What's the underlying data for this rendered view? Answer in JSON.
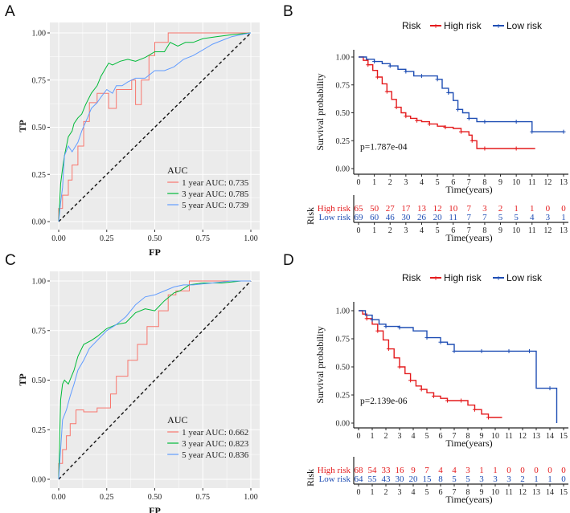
{
  "panels": [
    {
      "label": "A",
      "chart_data": {
        "type": "line",
        "title": "",
        "xlabel": "FP",
        "ylabel": "TP",
        "xlim": [
          0,
          1
        ],
        "ylim": [
          0,
          1
        ],
        "xticks": [
          "0.00",
          "0.25",
          "0.50",
          "0.75",
          "1.00"
        ],
        "yticks": [
          "0.00",
          "0.25",
          "0.50",
          "0.75",
          "1.00"
        ],
        "legend_title": "AUC",
        "series": [
          {
            "name": "1 year AUC: 0.735",
            "color": "#F8766D",
            "x": [
              0,
              0,
              0.02,
              0.02,
              0.05,
              0.05,
              0.07,
              0.07,
              0.1,
              0.1,
              0.13,
              0.13,
              0.16,
              0.16,
              0.2,
              0.2,
              0.26,
              0.26,
              0.3,
              0.3,
              0.38,
              0.38,
              0.4,
              0.4,
              0.43,
              0.43,
              0.47,
              0.47,
              0.5,
              0.5,
              0.57,
              0.57,
              0.66,
              0.66,
              1
            ],
            "y": [
              0,
              0.07,
              0.07,
              0.14,
              0.14,
              0.22,
              0.22,
              0.3,
              0.3,
              0.4,
              0.4,
              0.53,
              0.53,
              0.63,
              0.63,
              0.68,
              0.68,
              0.6,
              0.6,
              0.7,
              0.7,
              0.75,
              0.75,
              0.62,
              0.62,
              0.75,
              0.75,
              0.88,
              0.88,
              0.95,
              0.95,
              1,
              1,
              1,
              1
            ]
          },
          {
            "name": "3 year AUC: 0.785",
            "color": "#00BA38",
            "x": [
              0,
              0.01,
              0.02,
              0.03,
              0.05,
              0.07,
              0.08,
              0.1,
              0.12,
              0.14,
              0.17,
              0.2,
              0.22,
              0.26,
              0.28,
              0.32,
              0.36,
              0.4,
              0.45,
              0.5,
              0.55,
              0.58,
              0.62,
              0.66,
              0.7,
              0.75,
              0.82,
              0.9,
              1
            ],
            "y": [
              0,
              0.2,
              0.28,
              0.35,
              0.45,
              0.48,
              0.52,
              0.55,
              0.57,
              0.62,
              0.68,
              0.72,
              0.77,
              0.84,
              0.83,
              0.85,
              0.86,
              0.85,
              0.87,
              0.9,
              0.9,
              0.95,
              0.93,
              0.95,
              0.95,
              0.97,
              0.98,
              0.99,
              1
            ]
          },
          {
            "name": "5 year AUC: 0.739",
            "color": "#619CFF",
            "x": [
              0,
              0.01,
              0.02,
              0.03,
              0.05,
              0.07,
              0.1,
              0.12,
              0.15,
              0.17,
              0.2,
              0.22,
              0.25,
              0.28,
              0.3,
              0.33,
              0.36,
              0.4,
              0.45,
              0.5,
              0.55,
              0.6,
              0.65,
              0.7,
              0.75,
              0.8,
              0.85,
              0.9,
              0.95,
              1
            ],
            "y": [
              0,
              0.1,
              0.18,
              0.35,
              0.4,
              0.37,
              0.42,
              0.48,
              0.55,
              0.6,
              0.63,
              0.66,
              0.7,
              0.68,
              0.72,
              0.72,
              0.74,
              0.76,
              0.76,
              0.8,
              0.8,
              0.82,
              0.86,
              0.88,
              0.91,
              0.94,
              0.96,
              0.98,
              0.99,
              1
            ]
          }
        ]
      }
    },
    {
      "label": "B",
      "chart_data": {
        "type": "line",
        "title": "",
        "xlabel": "Time(years)",
        "ylabel": "Survival probability",
        "xlim": [
          0,
          13
        ],
        "ylim": [
          0,
          1
        ],
        "xticks": [
          "0",
          "1",
          "2",
          "3",
          "4",
          "5",
          "6",
          "7",
          "8",
          "9",
          "10",
          "11",
          "12",
          "13"
        ],
        "yticks": [
          "0.00",
          "0.25",
          "0.50",
          "0.75",
          "1.00"
        ],
        "legend_title": "Risk",
        "pvalue": "p=1.787e-04",
        "series": [
          {
            "name": "High risk",
            "color": "#E41A1C",
            "x": [
              0,
              0.3,
              0.6,
              0.9,
              1.2,
              1.5,
              1.8,
              2.1,
              2.4,
              2.7,
              3,
              3.3,
              3.7,
              4,
              4.5,
              5,
              5.5,
              6,
              6.5,
              7,
              7.2,
              7.5,
              8,
              9,
              10,
              11.2
            ],
            "y": [
              1,
              0.97,
              0.93,
              0.88,
              0.82,
              0.76,
              0.69,
              0.62,
              0.55,
              0.5,
              0.47,
              0.45,
              0.43,
              0.42,
              0.4,
              0.38,
              0.37,
              0.36,
              0.33,
              0.3,
              0.25,
              0.18,
              0.18,
              0.18,
              0.18,
              0.18
            ]
          },
          {
            "name": "Low risk",
            "color": "#1F4EB4",
            "x": [
              0,
              0.5,
              1,
              1.5,
              2,
              2.5,
              3,
              3.5,
              4,
              4.5,
              5,
              5.3,
              5.7,
              6,
              6.3,
              6.6,
              7,
              7.5,
              8,
              9,
              10,
              10.5,
              11,
              12,
              13
            ],
            "y": [
              1,
              0.98,
              0.96,
              0.94,
              0.92,
              0.89,
              0.87,
              0.83,
              0.83,
              0.83,
              0.8,
              0.72,
              0.68,
              0.61,
              0.53,
              0.5,
              0.45,
              0.42,
              0.42,
              0.42,
              0.42,
              0.42,
              0.33,
              0.33,
              0.33
            ]
          }
        ]
      },
      "risk_table": {
        "title": "Risk",
        "xlabel": "Time(years)",
        "times": [
          "0",
          "1",
          "2",
          "3",
          "4",
          "5",
          "6",
          "7",
          "8",
          "9",
          "10",
          "11",
          "12",
          "13"
        ],
        "rows": [
          {
            "name": "High risk",
            "color": "#E41A1C",
            "values": [
              "65",
              "50",
              "27",
              "17",
              "13",
              "12",
              "10",
              "7",
              "3",
              "2",
              "1",
              "1",
              "0",
              "0"
            ]
          },
          {
            "name": "Low risk",
            "color": "#1F4EB4",
            "values": [
              "69",
              "60",
              "46",
              "30",
              "26",
              "20",
              "11",
              "7",
              "7",
              "5",
              "5",
              "4",
              "3",
              "1"
            ]
          }
        ]
      }
    },
    {
      "label": "C",
      "chart_data": {
        "type": "line",
        "title": "",
        "xlabel": "FP",
        "ylabel": "TP",
        "xlim": [
          0,
          1
        ],
        "ylim": [
          0,
          1
        ],
        "xticks": [
          "0.00",
          "0.25",
          "0.50",
          "0.75",
          "1.00"
        ],
        "yticks": [
          "0.00",
          "0.25",
          "0.50",
          "0.75",
          "1.00"
        ],
        "legend_title": "AUC",
        "series": [
          {
            "name": "1 year AUC: 0.662",
            "color": "#F8766D",
            "x": [
              0,
              0,
              0.02,
              0.02,
              0.04,
              0.04,
              0.06,
              0.06,
              0.09,
              0.09,
              0.13,
              0.13,
              0.2,
              0.2,
              0.27,
              0.27,
              0.3,
              0.3,
              0.36,
              0.36,
              0.41,
              0.41,
              0.46,
              0.46,
              0.52,
              0.52,
              0.57,
              0.57,
              0.61,
              0.61,
              0.68,
              0.68,
              0.75,
              0.75,
              1
            ],
            "y": [
              0,
              0.08,
              0.08,
              0.15,
              0.15,
              0.22,
              0.22,
              0.28,
              0.28,
              0.35,
              0.35,
              0.34,
              0.34,
              0.36,
              0.36,
              0.43,
              0.43,
              0.52,
              0.52,
              0.6,
              0.6,
              0.68,
              0.68,
              0.77,
              0.77,
              0.85,
              0.85,
              0.93,
              0.93,
              0.95,
              0.95,
              1,
              1,
              1,
              1
            ]
          },
          {
            "name": "3 year AUC: 0.823",
            "color": "#00BA38",
            "x": [
              0,
              0.01,
              0.02,
              0.03,
              0.05,
              0.08,
              0.1,
              0.13,
              0.17,
              0.2,
              0.25,
              0.3,
              0.35,
              0.4,
              0.45,
              0.5,
              0.55,
              0.6,
              0.63,
              0.68,
              0.75,
              0.85,
              0.95,
              1
            ],
            "y": [
              0,
              0.4,
              0.48,
              0.5,
              0.48,
              0.55,
              0.62,
              0.68,
              0.7,
              0.72,
              0.76,
              0.78,
              0.79,
              0.84,
              0.86,
              0.85,
              0.9,
              0.94,
              0.95,
              0.98,
              0.99,
              0.99,
              1,
              1
            ]
          },
          {
            "name": "5 year AUC: 0.836",
            "color": "#619CFF",
            "x": [
              0,
              0.01,
              0.02,
              0.04,
              0.06,
              0.08,
              0.1,
              0.13,
              0.16,
              0.2,
              0.25,
              0.3,
              0.35,
              0.4,
              0.45,
              0.5,
              0.55,
              0.6,
              0.65,
              0.7,
              0.8,
              0.9,
              1
            ],
            "y": [
              0,
              0.15,
              0.3,
              0.35,
              0.42,
              0.48,
              0.55,
              0.6,
              0.66,
              0.7,
              0.75,
              0.78,
              0.82,
              0.88,
              0.92,
              0.93,
              0.95,
              0.97,
              0.98,
              0.98,
              0.99,
              1,
              1
            ]
          }
        ]
      }
    },
    {
      "label": "D",
      "chart_data": {
        "type": "line",
        "title": "",
        "xlabel": "Time(years)",
        "ylabel": "Survival probability",
        "xlim": [
          0,
          15
        ],
        "ylim": [
          0,
          1
        ],
        "xticks": [
          "0",
          "1",
          "2",
          "3",
          "4",
          "5",
          "6",
          "7",
          "8",
          "9",
          "10",
          "11",
          "12",
          "13",
          "14",
          "15"
        ],
        "yticks": [
          "0.00",
          "0.25",
          "0.50",
          "0.75",
          "1.00"
        ],
        "legend_title": "Risk",
        "pvalue": "p=2.139e-06",
        "series": [
          {
            "name": "High risk",
            "color": "#E41A1C",
            "x": [
              0,
              0.3,
              0.6,
              1,
              1.4,
              1.8,
              2.2,
              2.6,
              3,
              3.4,
              3.8,
              4.2,
              4.6,
              5,
              5.5,
              6,
              6.5,
              7,
              7.5,
              8,
              8.5,
              9,
              9.5,
              10.5
            ],
            "y": [
              1,
              0.97,
              0.93,
              0.88,
              0.82,
              0.74,
              0.66,
              0.58,
              0.5,
              0.44,
              0.38,
              0.33,
              0.3,
              0.27,
              0.24,
              0.22,
              0.2,
              0.2,
              0.2,
              0.16,
              0.12,
              0.08,
              0.05,
              0.05
            ]
          },
          {
            "name": "Low risk",
            "color": "#1F4EB4",
            "x": [
              0,
              0.5,
              1,
              1.5,
              2,
              2.5,
              3,
              4,
              5,
              5.5,
              6,
              6.5,
              7,
              8,
              9,
              10,
              11,
              12,
              12.5,
              13,
              14,
              14.5
            ],
            "y": [
              1,
              0.96,
              0.92,
              0.88,
              0.86,
              0.86,
              0.85,
              0.82,
              0.76,
              0.76,
              0.72,
              0.7,
              0.64,
              0.64,
              0.64,
              0.64,
              0.64,
              0.64,
              0.64,
              0.31,
              0.31,
              0
            ]
          }
        ]
      },
      "risk_table": {
        "title": "Risk",
        "xlabel": "Time(years)",
        "times": [
          "0",
          "1",
          "2",
          "3",
          "4",
          "5",
          "6",
          "7",
          "8",
          "9",
          "10",
          "11",
          "12",
          "13",
          "14",
          "15"
        ],
        "rows": [
          {
            "name": "High risk",
            "color": "#E41A1C",
            "values": [
              "68",
              "54",
              "33",
              "16",
              "9",
              "7",
              "4",
              "4",
              "3",
              "1",
              "1",
              "0",
              "0",
              "0",
              "0",
              "0"
            ]
          },
          {
            "name": "Low risk",
            "color": "#1F4EB4",
            "values": [
              "64",
              "55",
              "43",
              "30",
              "20",
              "15",
              "8",
              "5",
              "5",
              "3",
              "3",
              "3",
              "2",
              "1",
              "1",
              "0"
            ]
          }
        ]
      }
    }
  ]
}
